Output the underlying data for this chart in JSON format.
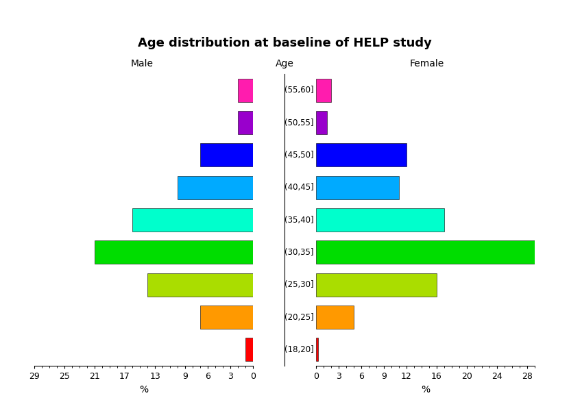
{
  "title": "Age distribution at baseline of HELP study",
  "age_groups": [
    "(18,20]",
    "(20,25]",
    "(25,30]",
    "(30,35]",
    "(35,40]",
    "(40,45]",
    "(45,50]",
    "(50,55]",
    "(55,60]"
  ],
  "male_values": [
    1,
    7,
    14,
    21,
    16,
    10,
    7,
    2,
    2
  ],
  "female_values": [
    0.3,
    5,
    16,
    29,
    17,
    11,
    12,
    1.5,
    2
  ],
  "colors": [
    "#FF0000",
    "#FF9900",
    "#AADD00",
    "#00DD00",
    "#00FFCC",
    "#00AAFF",
    "#0000FF",
    "#9900CC",
    "#FF1CAE"
  ],
  "male_label": "Male",
  "female_label": "Female",
  "age_label": "Age",
  "xlabel": "%",
  "xlim_male": 29,
  "xlim_female": 29,
  "xticks_male": [
    0,
    3,
    6,
    9,
    13,
    17,
    21,
    25,
    29
  ],
  "xticks_female": [
    0,
    3,
    6,
    9,
    12,
    16,
    20,
    24,
    28
  ]
}
